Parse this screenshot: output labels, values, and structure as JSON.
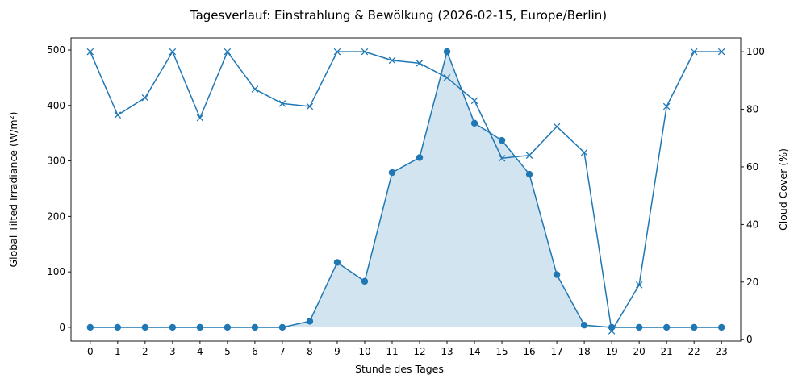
{
  "chart_data": {
    "type": "line",
    "title": "Tagesverlauf: Einstrahlung & Bewölkung (2026-02-15, Europe/Berlin)",
    "xlabel": "Stunde des Tages",
    "ylabel": "Global Tilted Irradiance (W/m²)",
    "y2label": "Cloud Cover (%)",
    "x": [
      0,
      1,
      2,
      3,
      4,
      5,
      6,
      7,
      8,
      9,
      10,
      11,
      12,
      13,
      14,
      15,
      16,
      17,
      18,
      19,
      20,
      21,
      22,
      23
    ],
    "ylim": [
      -24.8,
      521.8
    ],
    "y2lim": [
      -0.5,
      104.8
    ],
    "yticks": [
      0,
      100,
      200,
      300,
      400,
      500
    ],
    "y2ticks": [
      0,
      20,
      40,
      60,
      80,
      100
    ],
    "grid": false,
    "series": [
      {
        "axis": "left",
        "marker": "circle",
        "fill_area": true,
        "color": "#1f77b4",
        "fill_color": "#1f77b4",
        "values": [
          0,
          0,
          0,
          0,
          0,
          0,
          0,
          0,
          11,
          117,
          83,
          279,
          306,
          497,
          368,
          337,
          276,
          95,
          4,
          0,
          0,
          0,
          0,
          0
        ]
      },
      {
        "axis": "right",
        "marker": "x",
        "color": "#1f77b4",
        "values": [
          100,
          78,
          84,
          100,
          77,
          100,
          87,
          82,
          81,
          100,
          100,
          97,
          96,
          91,
          83,
          63,
          64,
          74,
          65,
          3,
          19,
          81,
          100,
          100
        ]
      }
    ]
  }
}
